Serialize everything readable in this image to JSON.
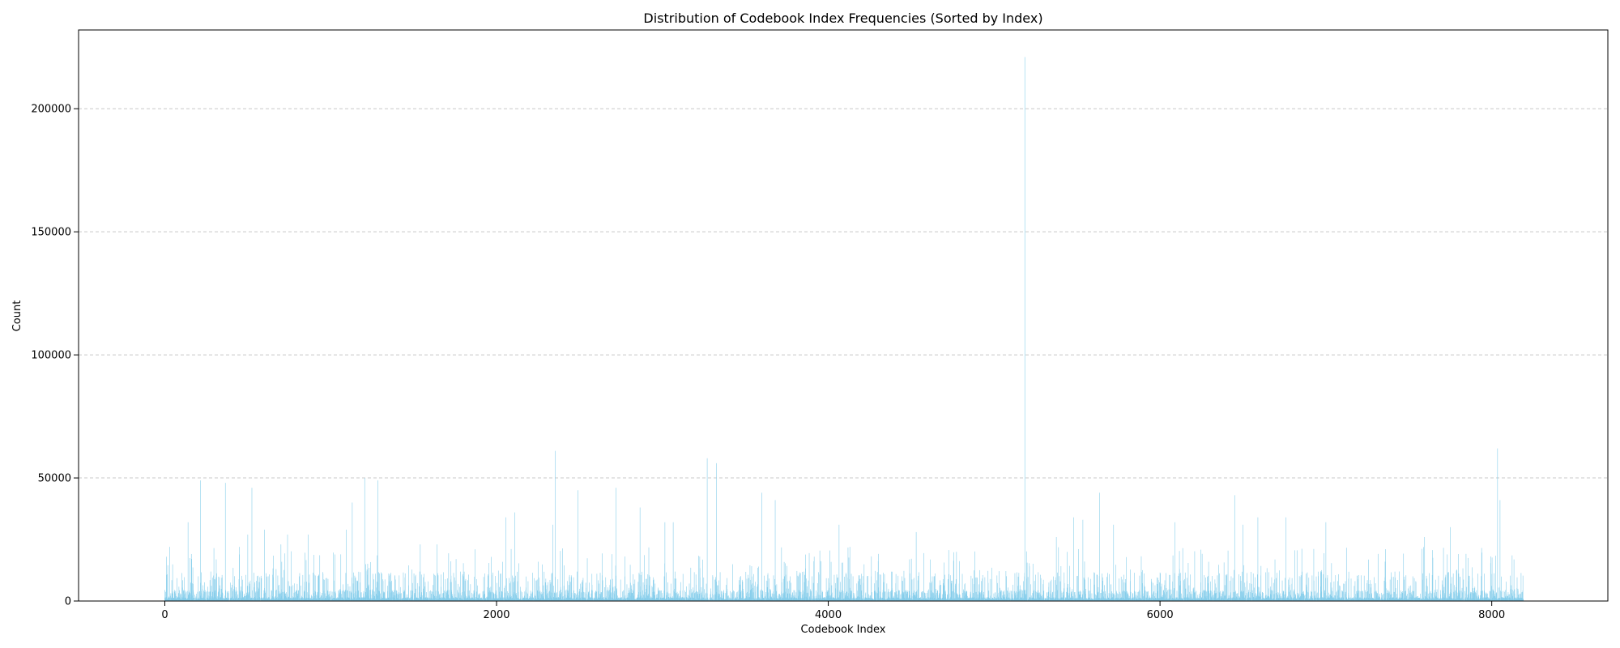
{
  "chart_data": {
    "type": "bar",
    "title": "Distribution of Codebook Index Frequencies (Sorted by Index)",
    "xlabel": "Codebook Index",
    "ylabel": "Count",
    "xlim": [
      -520,
      8700
    ],
    "ylim": [
      0,
      232000
    ],
    "x_ticks": [
      0,
      2000,
      4000,
      6000,
      8000
    ],
    "y_ticks": [
      0,
      50000,
      100000,
      150000,
      200000
    ],
    "x_tick_labels": [
      "0",
      "2000",
      "4000",
      "6000",
      "8000"
    ],
    "y_tick_labels": [
      "0",
      "50000",
      "100000",
      "150000",
      "200000"
    ],
    "grid": "y-dashed",
    "bar_color": "#87ceeb",
    "n_indices": 8192,
    "peaks": [
      {
        "x": 10,
        "y": 18000
      },
      {
        "x": 30,
        "y": 22000
      },
      {
        "x": 140,
        "y": 32000
      },
      {
        "x": 215,
        "y": 49000
      },
      {
        "x": 365,
        "y": 48000
      },
      {
        "x": 450,
        "y": 22000
      },
      {
        "x": 500,
        "y": 27000
      },
      {
        "x": 525,
        "y": 46000
      },
      {
        "x": 600,
        "y": 29000
      },
      {
        "x": 700,
        "y": 23000
      },
      {
        "x": 740,
        "y": 27000
      },
      {
        "x": 865,
        "y": 27000
      },
      {
        "x": 1095,
        "y": 29000
      },
      {
        "x": 1130,
        "y": 40000
      },
      {
        "x": 1205,
        "y": 50000
      },
      {
        "x": 1285,
        "y": 49000
      },
      {
        "x": 1540,
        "y": 23000
      },
      {
        "x": 1640,
        "y": 23000
      },
      {
        "x": 1870,
        "y": 21000
      },
      {
        "x": 2055,
        "y": 34000
      },
      {
        "x": 2110,
        "y": 36000
      },
      {
        "x": 2340,
        "y": 31000
      },
      {
        "x": 2355,
        "y": 61000
      },
      {
        "x": 2490,
        "y": 45000
      },
      {
        "x": 2720,
        "y": 46000
      },
      {
        "x": 2865,
        "y": 38000
      },
      {
        "x": 3015,
        "y": 32000
      },
      {
        "x": 3065,
        "y": 32000
      },
      {
        "x": 3270,
        "y": 58000
      },
      {
        "x": 3325,
        "y": 56000
      },
      {
        "x": 3600,
        "y": 44000
      },
      {
        "x": 3680,
        "y": 41000
      },
      {
        "x": 4065,
        "y": 31000
      },
      {
        "x": 4530,
        "y": 28000
      },
      {
        "x": 5185,
        "y": 221000
      },
      {
        "x": 5375,
        "y": 26000
      },
      {
        "x": 5480,
        "y": 34000
      },
      {
        "x": 5535,
        "y": 33000
      },
      {
        "x": 5635,
        "y": 44000
      },
      {
        "x": 5720,
        "y": 31000
      },
      {
        "x": 6090,
        "y": 32000
      },
      {
        "x": 6450,
        "y": 43000
      },
      {
        "x": 6500,
        "y": 31000
      },
      {
        "x": 6590,
        "y": 34000
      },
      {
        "x": 6760,
        "y": 34000
      },
      {
        "x": 7000,
        "y": 32000
      },
      {
        "x": 7595,
        "y": 26000
      },
      {
        "x": 7750,
        "y": 30000
      },
      {
        "x": 8035,
        "y": 62000
      },
      {
        "x": 8050,
        "y": 41000
      }
    ]
  }
}
